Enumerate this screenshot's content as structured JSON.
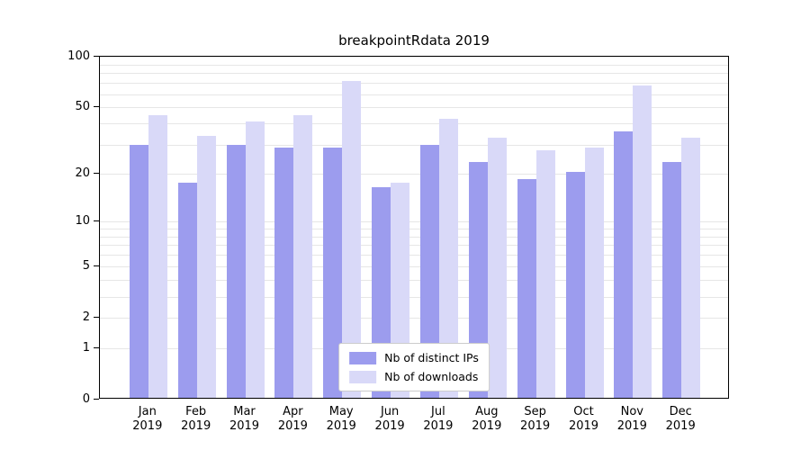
{
  "chart_data": {
    "type": "bar",
    "title": "breakpointRdata 2019",
    "categories": [
      "Jan 2019",
      "Feb 2019",
      "Mar 2019",
      "Apr 2019",
      "May 2019",
      "Jun 2019",
      "Jul 2019",
      "Aug 2019",
      "Sep 2019",
      "Oct 2019",
      "Nov 2019",
      "Dec 2019"
    ],
    "series": [
      {
        "name": "Nb of distinct IPs",
        "color": "#9c9cee",
        "values": [
          29,
          17,
          29,
          28,
          28,
          16,
          29,
          23,
          18,
          20,
          35,
          23
        ]
      },
      {
        "name": "Nb of downloads",
        "color": "#d9d9f8",
        "values": [
          44,
          33,
          40,
          44,
          70,
          17,
          42,
          32,
          27,
          28,
          66,
          32
        ]
      }
    ],
    "yscale": "log10(x+1)",
    "yticks": [
      0,
      1,
      2,
      5,
      10,
      20,
      50,
      100
    ],
    "minor_gridlines": [
      3,
      4,
      6,
      7,
      8,
      9,
      30,
      40,
      60,
      70,
      80,
      90
    ],
    "ylim": [
      0,
      100
    ],
    "grid": true,
    "legend_position": "lower center"
  }
}
